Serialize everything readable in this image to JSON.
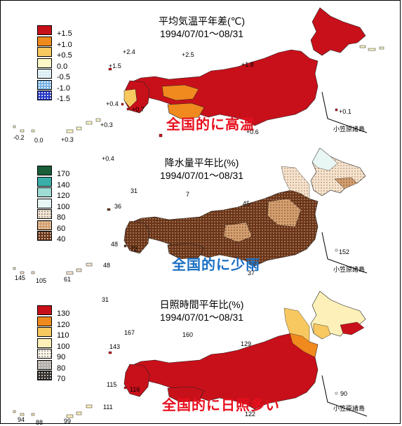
{
  "panels": [
    {
      "id": "temperature",
      "title": "平均気温平年差(℃)",
      "period": "1994/07/01～08/31",
      "caption": "全国的に高温",
      "caption_color": "#e8101e",
      "legend": {
        "labels": [
          "+1.5",
          "+1.0",
          "+0.5",
          "0.0",
          "-0.5",
          "-1.0",
          "-1.5"
        ],
        "colors": [
          "#c8101a",
          "#f08a1e",
          "#f8c860",
          "#fdf8c8",
          "#d8ecf4",
          "#7ab4e6",
          "#2838c8"
        ],
        "patterns": [
          "solid",
          "solid",
          "solid",
          "solid",
          "dots",
          "dots",
          "dots"
        ]
      },
      "map_fill": "#c8101a",
      "sub_fill": [
        {
          "region": "kyushu-west",
          "color": "#f8c860"
        },
        {
          "region": "chugoku-south",
          "color": "#f08a1e"
        },
        {
          "region": "shikoku",
          "color": "#f08a1e"
        },
        {
          "region": "tohoku-pacific",
          "color": "#c8101a"
        }
      ],
      "stations": [
        {
          "text": "+2.4"
        },
        {
          "text": "+2.5"
        },
        {
          "text": "+1.5"
        },
        {
          "text": "+1.8"
        },
        {
          "text": "+0.4"
        },
        {
          "text": "+0.7"
        },
        {
          "text": "+0.3"
        },
        {
          "text": "-0.2"
        },
        {
          "text": "0.0"
        },
        {
          "text": "+0.3"
        },
        {
          "text": "+0.6"
        },
        {
          "text": "+0.1"
        }
      ],
      "ogasawara_label": "小笠原諸島"
    },
    {
      "id": "precipitation",
      "title": "降水量平年比(%)",
      "period": "1994/07/01～08/31",
      "caption": "全国的に少雨",
      "caption_color": "#1a6fc4",
      "legend": {
        "labels": [
          "170",
          "140",
          "120",
          "100",
          "80",
          "60",
          "40"
        ],
        "colors": [
          "#1a5e3a",
          "#3aaea8",
          "#9edcd4",
          "#e8f6f4",
          "#f4e4d0",
          "#d4a070",
          "#6a3418"
        ],
        "patterns": [
          "solid",
          "solid",
          "solid",
          "solid",
          "dots",
          "dots",
          "dots"
        ]
      },
      "map_fill": "#6a3418",
      "stations": [
        {
          "text": "+0.4"
        },
        {
          "text": "31"
        },
        {
          "text": "7"
        },
        {
          "text": "36"
        },
        {
          "text": "45"
        },
        {
          "text": "48"
        },
        {
          "text": "72"
        },
        {
          "text": "37"
        },
        {
          "text": "48"
        },
        {
          "text": "145"
        },
        {
          "text": "105"
        },
        {
          "text": "61"
        },
        {
          "text": "152"
        }
      ],
      "ogasawara_label": "小笠原諸島"
    },
    {
      "id": "sunshine",
      "title": "日照時間平年比(%)",
      "period": "1994/07/01～08/31",
      "caption": "全国的に日照多い",
      "caption_color": "#e8101e",
      "legend": {
        "labels": [
          "130",
          "120",
          "110",
          "100",
          "90",
          "80",
          "70"
        ],
        "colors": [
          "#c8101a",
          "#f08a1e",
          "#f8c860",
          "#fdf0b8",
          "#fdf8e8",
          "#b0b0b0",
          "#303030"
        ],
        "patterns": [
          "solid",
          "solid",
          "solid",
          "solid",
          "dots",
          "dots",
          "dots"
        ]
      },
      "map_fill": "#c8101a",
      "stations": [
        {
          "text": "31"
        },
        {
          "text": "167"
        },
        {
          "text": "160"
        },
        {
          "text": "143"
        },
        {
          "text": "129"
        },
        {
          "text": "115"
        },
        {
          "text": "116"
        },
        {
          "text": "122"
        },
        {
          "text": "111"
        },
        {
          "text": "94"
        },
        {
          "text": "88"
        },
        {
          "text": "99"
        },
        {
          "text": "90"
        }
      ],
      "ogasawara_label": "小笠原諸島"
    }
  ]
}
